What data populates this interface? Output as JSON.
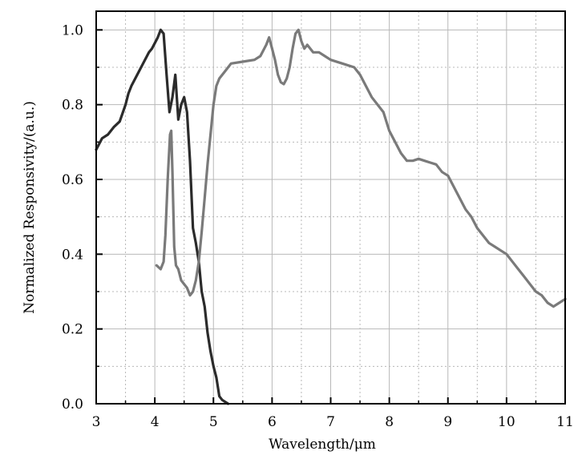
{
  "chart_data": {
    "type": "line",
    "xlabel": "Wavelength/μm",
    "ylabel": "Normalized Responsivity/(a.u.)",
    "xlim": [
      3,
      11
    ],
    "ylim": [
      0.0,
      1.05
    ],
    "x_ticks": [
      "3",
      "4",
      "5",
      "6",
      "7",
      "8",
      "9",
      "10",
      "11"
    ],
    "y_ticks": [
      "0.0",
      "0.2",
      "0.4",
      "0.6",
      "0.8",
      "1.0"
    ],
    "grid": true,
    "colors": {
      "series_dark": "#2b2b2b",
      "series_gray": "#7a7a7a",
      "grid": "#b8b8b8",
      "axis": "#000000"
    },
    "series": [
      {
        "x": [
          3.0,
          3.1,
          3.2,
          3.3,
          3.4,
          3.5,
          3.55,
          3.6,
          3.7,
          3.8,
          3.9,
          3.95,
          4.05,
          4.1,
          4.15,
          4.2,
          4.25,
          4.3,
          4.35,
          4.4,
          4.45,
          4.5,
          4.55,
          4.6,
          4.65,
          4.7,
          4.75,
          4.8,
          4.85,
          4.9,
          4.95,
          5.0,
          5.05,
          5.1,
          5.15,
          5.2,
          5.25
        ],
        "values": [
          0.68,
          0.71,
          0.72,
          0.74,
          0.755,
          0.8,
          0.83,
          0.85,
          0.88,
          0.91,
          0.94,
          0.95,
          0.98,
          1.0,
          0.99,
          0.88,
          0.78,
          0.82,
          0.88,
          0.76,
          0.8,
          0.82,
          0.78,
          0.65,
          0.47,
          0.43,
          0.38,
          0.3,
          0.26,
          0.19,
          0.14,
          0.1,
          0.07,
          0.02,
          0.01,
          0.005,
          0.0
        ]
      },
      {
        "x": [
          4.03,
          4.1,
          4.15,
          4.18,
          4.22,
          4.26,
          4.28,
          4.3,
          4.33,
          4.36,
          4.4,
          4.45,
          4.5,
          4.55,
          4.6,
          4.65,
          4.7,
          4.75,
          4.8,
          4.85,
          4.9,
          4.95,
          5.0,
          5.05,
          5.1,
          5.2,
          5.3,
          5.5,
          5.7,
          5.8,
          5.9,
          5.95,
          6.0,
          6.05,
          6.1,
          6.15,
          6.2,
          6.25,
          6.3,
          6.35,
          6.4,
          6.45,
          6.5,
          6.55,
          6.6,
          6.7,
          6.8,
          6.9,
          7.0,
          7.2,
          7.4,
          7.5,
          7.7,
          7.9,
          8.0,
          8.1,
          8.2,
          8.3,
          8.4,
          8.5,
          8.6,
          8.7,
          8.8,
          8.9,
          9.0,
          9.1,
          9.2,
          9.3,
          9.4,
          9.5,
          9.6,
          9.7,
          9.8,
          9.9,
          10.0,
          10.1,
          10.2,
          10.3,
          10.4,
          10.5,
          10.6,
          10.7,
          10.8,
          10.9,
          11.0
        ],
        "values": [
          0.37,
          0.36,
          0.38,
          0.45,
          0.6,
          0.72,
          0.73,
          0.62,
          0.42,
          0.37,
          0.36,
          0.33,
          0.32,
          0.31,
          0.29,
          0.3,
          0.33,
          0.38,
          0.46,
          0.55,
          0.64,
          0.72,
          0.8,
          0.85,
          0.87,
          0.89,
          0.91,
          0.915,
          0.92,
          0.93,
          0.96,
          0.98,
          0.95,
          0.92,
          0.88,
          0.86,
          0.855,
          0.87,
          0.9,
          0.95,
          0.99,
          1.0,
          0.97,
          0.95,
          0.96,
          0.94,
          0.94,
          0.93,
          0.92,
          0.91,
          0.9,
          0.88,
          0.82,
          0.78,
          0.73,
          0.7,
          0.67,
          0.65,
          0.65,
          0.655,
          0.65,
          0.645,
          0.64,
          0.62,
          0.61,
          0.58,
          0.55,
          0.52,
          0.5,
          0.47,
          0.45,
          0.43,
          0.42,
          0.41,
          0.4,
          0.38,
          0.36,
          0.34,
          0.32,
          0.3,
          0.29,
          0.27,
          0.26,
          0.27,
          0.28
        ]
      }
    ]
  }
}
